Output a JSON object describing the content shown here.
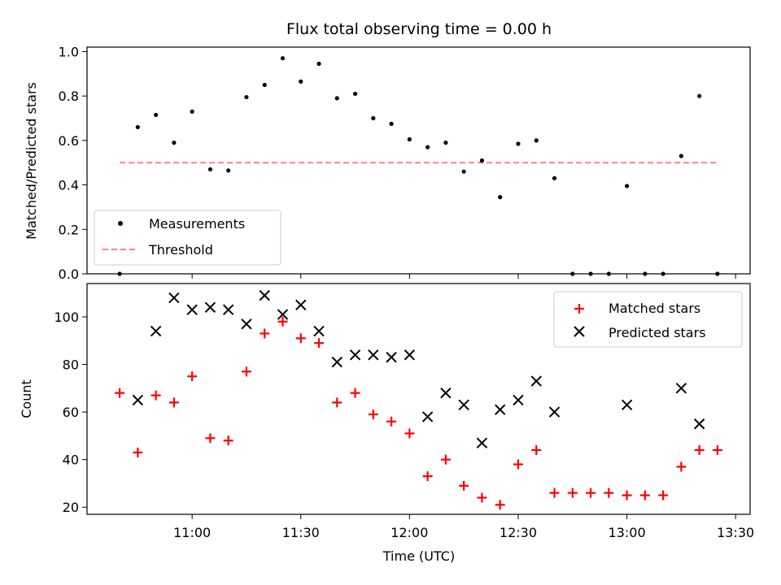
{
  "chart_data": [
    {
      "type": "scatter",
      "title": "Flux total observing time = 0.00 h",
      "ylabel": "Matched/Predicted stars",
      "ylim": [
        0,
        1.02
      ],
      "yticks": [
        "0.0",
        "0.2",
        "0.4",
        "0.6",
        "0.8",
        "1.0"
      ],
      "ytick_values": [
        0,
        0.2,
        0.4,
        0.6,
        0.8,
        1.0
      ],
      "legend_position": "lower-left",
      "series": [
        {
          "name": "Measurements",
          "color": "#000000",
          "marker": "dot",
          "x": [
            "10:45",
            "10:50",
            "10:55",
            "11:00",
            "11:05",
            "11:10",
            "11:15",
            "11:20",
            "11:25",
            "11:30",
            "11:35",
            "11:40",
            "11:45",
            "11:50",
            "11:55",
            "12:00",
            "12:05",
            "12:10",
            "12:15",
            "12:20",
            "12:25",
            "12:30",
            "12:35",
            "12:40",
            "12:45",
            "12:50",
            "12:55",
            "13:00",
            "13:05",
            "13:10",
            "13:15",
            "13:20",
            "13:25",
            "10:40"
          ],
          "y": [
            0.66,
            0.715,
            0.59,
            0.73,
            0.47,
            0.465,
            0.795,
            0.85,
            0.97,
            0.865,
            0.945,
            0.79,
            0.81,
            0.7,
            0.675,
            0.605,
            0.57,
            0.59,
            0.46,
            0.51,
            0.345,
            0.585,
            0.6,
            0.43,
            0.0,
            0.0,
            0.0,
            0.395,
            0.0,
            0.0,
            0.53,
            0.8,
            0.0,
            0.0
          ]
        },
        {
          "name": "Threshold",
          "color": "#ff8080",
          "line": "dashed",
          "x": [
            "10:40",
            "13:25"
          ],
          "y": [
            0.5,
            0.5
          ]
        }
      ]
    },
    {
      "type": "scatter",
      "xlabel": "Time (UTC)",
      "ylabel": "Count",
      "ylim": [
        17,
        114
      ],
      "yticks": [
        "20",
        "40",
        "60",
        "80",
        "100"
      ],
      "ytick_values": [
        20,
        40,
        60,
        80,
        100
      ],
      "xticks": [
        "11:00",
        "11:30",
        "12:00",
        "12:30",
        "13:00",
        "13:30"
      ],
      "xtick_values": [
        "11:00",
        "11:30",
        "12:00",
        "12:30",
        "13:00",
        "13:30"
      ],
      "xlim": [
        "10:31",
        "13:34"
      ],
      "legend_position": "upper-right",
      "series": [
        {
          "name": "Matched stars",
          "color": "#ff0000",
          "marker": "plus",
          "x": [
            "10:40",
            "10:45",
            "10:50",
            "10:55",
            "11:00",
            "11:05",
            "11:10",
            "11:15",
            "11:20",
            "11:25",
            "11:30",
            "11:35",
            "11:40",
            "11:45",
            "11:50",
            "11:55",
            "12:00",
            "12:05",
            "12:10",
            "12:15",
            "12:20",
            "12:25",
            "12:30",
            "12:35",
            "12:40",
            "12:45",
            "12:50",
            "12:55",
            "13:00",
            "13:05",
            "13:10",
            "13:15",
            "13:20",
            "13:25"
          ],
          "y": [
            68,
            43,
            67,
            64,
            75,
            49,
            48,
            77,
            93,
            98,
            91,
            89,
            64,
            68,
            59,
            56,
            51,
            33,
            40,
            29,
            24,
            21,
            38,
            44,
            26,
            26,
            26,
            26,
            25,
            25,
            25,
            37,
            44,
            44
          ]
        },
        {
          "name": "Predicted stars",
          "color": "#000000",
          "marker": "x",
          "x": [
            "10:45",
            "10:50",
            "10:55",
            "11:00",
            "11:05",
            "11:10",
            "11:15",
            "11:20",
            "11:25",
            "11:30",
            "11:35",
            "11:40",
            "11:45",
            "11:50",
            "11:55",
            "12:00",
            "12:05",
            "12:10",
            "12:15",
            "12:20",
            "12:25",
            "12:30",
            "12:35",
            "12:40",
            "13:00",
            "13:15",
            "13:20"
          ],
          "y": [
            65,
            94,
            108,
            103,
            104,
            103,
            97,
            109,
            101,
            105,
            94,
            81,
            84,
            84,
            83,
            84,
            58,
            68,
            63,
            47,
            61,
            65,
            73,
            60,
            63,
            70,
            55
          ]
        }
      ]
    }
  ]
}
